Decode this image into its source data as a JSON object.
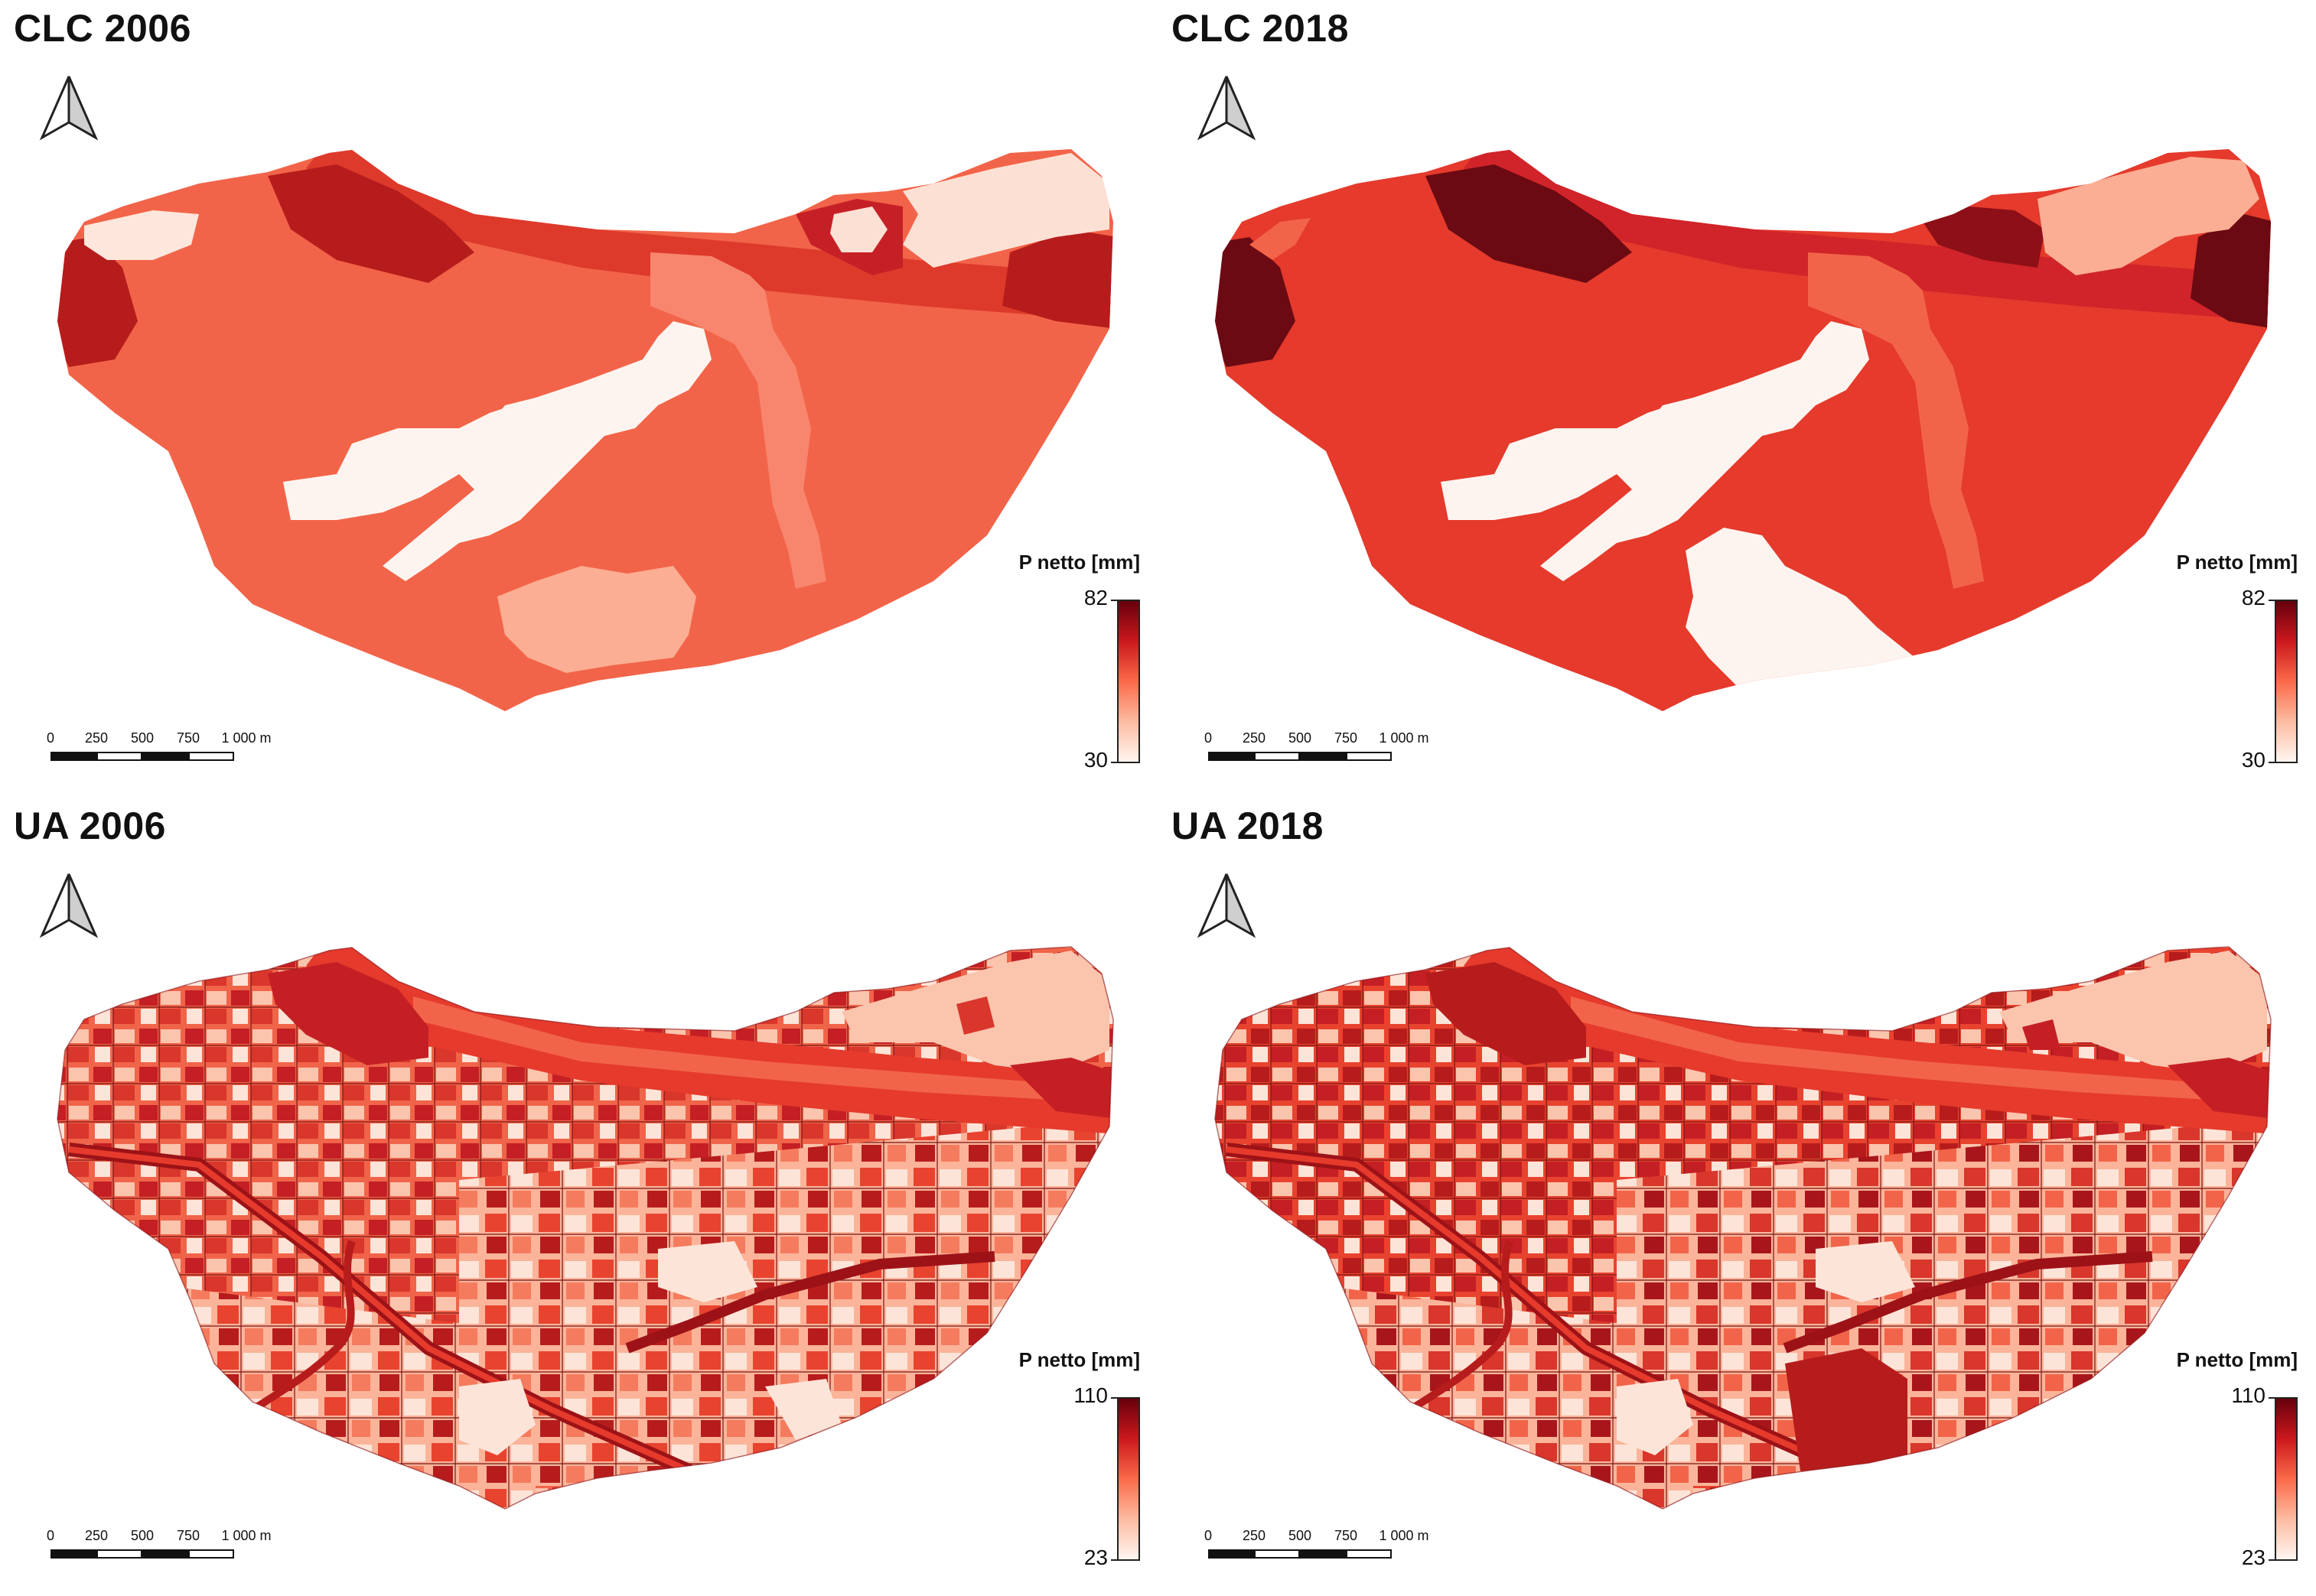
{
  "panels": [
    {
      "id": "tl",
      "title": "CLC 2006",
      "legend": {
        "title": "P netto [mm]",
        "max": "82",
        "min": "30"
      },
      "scale": {
        "labels": [
          "0",
          "250",
          "500",
          "750",
          "1 000 m"
        ]
      }
    },
    {
      "id": "tr",
      "title": "CLC 2018",
      "legend": {
        "title": "P netto [mm]",
        "max": "82",
        "min": "30"
      },
      "scale": {
        "labels": [
          "0",
          "250",
          "500",
          "750",
          "1 000 m"
        ]
      }
    },
    {
      "id": "bl",
      "title": "UA 2006",
      "legend": {
        "title": "P netto [mm]",
        "max": "110",
        "min": "23"
      },
      "scale": {
        "labels": [
          "0",
          "250",
          "500",
          "750",
          "1 000 m"
        ]
      }
    },
    {
      "id": "br",
      "title": "UA 2018",
      "legend": {
        "title": "P netto [mm]",
        "max": "110",
        "min": "23"
      },
      "scale": {
        "labels": [
          "0",
          "250",
          "500",
          "750",
          "1 000 m"
        ]
      }
    }
  ],
  "colors": {
    "ramp_low": "#fff5f0",
    "ramp_mid_low": "#fcbba1",
    "ramp_mid": "#fb6a4a",
    "ramp_mid_high": "#cb181d",
    "ramp_high": "#67000d"
  }
}
